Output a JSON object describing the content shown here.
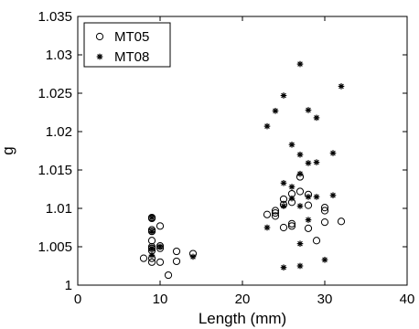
{
  "chart_data": {
    "type": "scatter",
    "xlabel": "Length (mm)",
    "ylabel": "g",
    "xlim": [
      0,
      40
    ],
    "ylim": [
      1.0,
      1.035
    ],
    "xticks": [
      "0",
      "10",
      "20",
      "30",
      "40"
    ],
    "yticks": [
      "1",
      "1.005",
      "1.01",
      "1.015",
      "1.02",
      "1.025",
      "1.03",
      "1.035"
    ],
    "grid": false,
    "legend_position": "top-left",
    "series": [
      {
        "name": "MT05",
        "marker": "circle",
        "points": [
          [
            8,
            1.0035
          ],
          [
            9,
            1.0088
          ],
          [
            9,
            1.0087
          ],
          [
            9,
            1.0072
          ],
          [
            9,
            1.007
          ],
          [
            9,
            1.0058
          ],
          [
            9,
            1.005
          ],
          [
            9,
            1.0048
          ],
          [
            9,
            1.0045
          ],
          [
            9,
            1.0035
          ],
          [
            9,
            1.003
          ],
          [
            10,
            1.0077
          ],
          [
            10,
            1.0051
          ],
          [
            10,
            1.0048
          ],
          [
            10,
            1.003
          ],
          [
            11,
            1.0013
          ],
          [
            12,
            1.0044
          ],
          [
            12,
            1.0031
          ],
          [
            14,
            1.0041
          ],
          [
            23,
            1.0092
          ],
          [
            24,
            1.0097
          ],
          [
            24,
            1.0094
          ],
          [
            24,
            1.009
          ],
          [
            25,
            1.0112
          ],
          [
            25,
            1.0105
          ],
          [
            25,
            1.0075
          ],
          [
            26,
            1.0119
          ],
          [
            26,
            1.0108
          ],
          [
            26,
            1.008
          ],
          [
            26,
            1.0077
          ],
          [
            27,
            1.0141
          ],
          [
            27,
            1.0122
          ],
          [
            28,
            1.0118
          ],
          [
            28,
            1.0104
          ],
          [
            28,
            1.0074
          ],
          [
            29,
            1.0058
          ],
          [
            30,
            1.0101
          ],
          [
            30,
            1.0097
          ],
          [
            30,
            1.0082
          ],
          [
            32,
            1.0083
          ]
        ]
      },
      {
        "name": "MT08",
        "marker": "star",
        "points": [
          [
            9,
            1.0088
          ],
          [
            9,
            1.007
          ],
          [
            9,
            1.0048
          ],
          [
            9,
            1.0039
          ],
          [
            10,
            1.005
          ],
          [
            14,
            1.0037
          ],
          [
            23,
            1.0207
          ],
          [
            23,
            1.0075
          ],
          [
            24,
            1.0227
          ],
          [
            25,
            1.0247
          ],
          [
            25,
            1.0133
          ],
          [
            25,
            1.0103
          ],
          [
            25,
            1.0023
          ],
          [
            26,
            1.0183
          ],
          [
            26,
            1.0128
          ],
          [
            26,
            1.0113
          ],
          [
            27,
            1.0288
          ],
          [
            27,
            1.017
          ],
          [
            27,
            1.0145
          ],
          [
            27,
            1.0103
          ],
          [
            27,
            1.0054
          ],
          [
            27,
            1.0025
          ],
          [
            28,
            1.0228
          ],
          [
            28,
            1.0159
          ],
          [
            28,
            1.0115
          ],
          [
            28,
            1.0085
          ],
          [
            29,
            1.0218
          ],
          [
            29,
            1.016
          ],
          [
            29,
            1.0115
          ],
          [
            30,
            1.0033
          ],
          [
            31,
            1.0172
          ],
          [
            31,
            1.0117
          ],
          [
            32,
            1.0259
          ]
        ]
      }
    ]
  }
}
